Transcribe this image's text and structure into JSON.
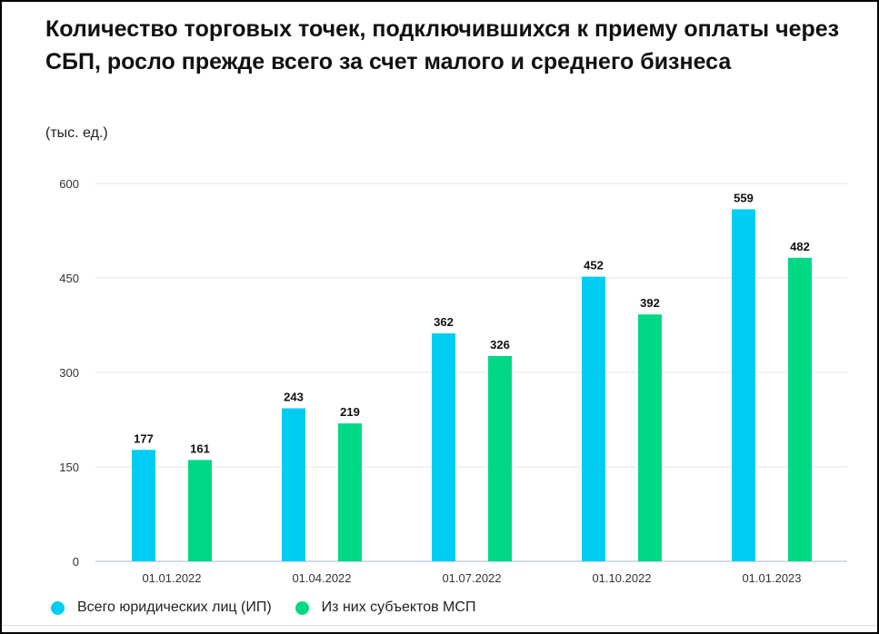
{
  "chart_data": {
    "type": "bar",
    "title": "Количество торговых точек, подключившихся к приему оплаты через СБП, росло прежде всего за счет малого и среднего бизнеса",
    "subtitle": "(тыс. ед.)",
    "categories": [
      "01.01.2022",
      "01.04.2022",
      "01.07.2022",
      "01.10.2022",
      "01.01.2023"
    ],
    "series": [
      {
        "name": "Всего юридических лиц (ИП)",
        "color": "#00cdf2",
        "values": [
          177,
          243,
          362,
          452,
          559
        ]
      },
      {
        "name": "Из них субъектов МСП",
        "color": "#00d886",
        "values": [
          161,
          219,
          326,
          392,
          482
        ]
      }
    ],
    "yticks": [
      0,
      150,
      300,
      450,
      600
    ],
    "ylim": [
      0,
      600
    ],
    "grid": true,
    "legend": "bottom-left",
    "data_labels": true
  }
}
